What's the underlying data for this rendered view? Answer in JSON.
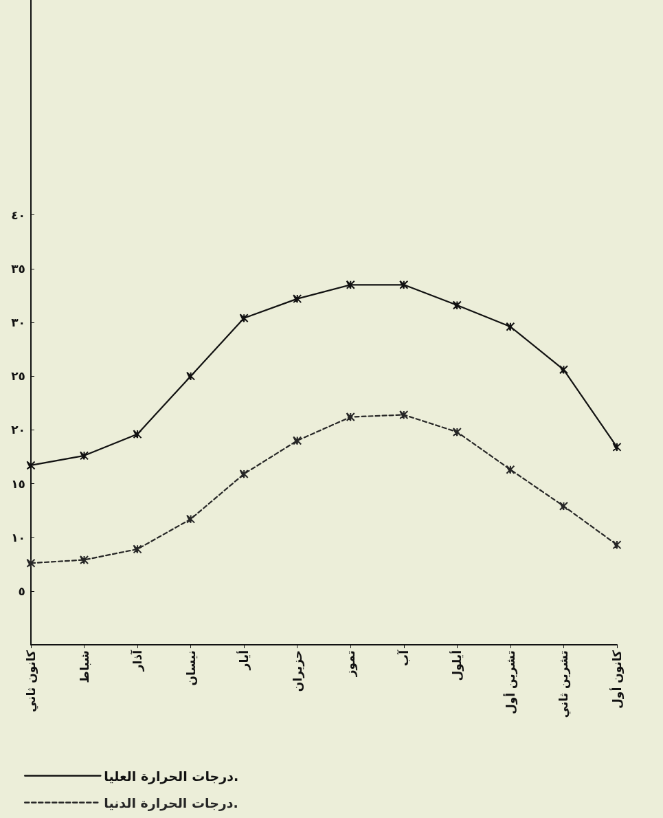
{
  "chart_data": {
    "type": "line",
    "categories": [
      "كانون ثاني",
      "شباط",
      "آذار",
      "نيسان",
      "أيار",
      "حزيران",
      "تموز",
      "آب",
      "أيلول",
      "تشرين أول",
      "تشرين ثاني",
      "كانون أول"
    ],
    "series": [
      {
        "name": "درجات الحرارة العليا.",
        "color": "#111111",
        "line_style": "solid",
        "values": [
          16.7,
          17.6,
          19.6,
          25.0,
          30.4,
          32.2,
          33.5,
          33.5,
          31.6,
          29.6,
          25.6,
          18.4
        ]
      },
      {
        "name": "درجات الحرارة الدنيا.",
        "color": "#262626",
        "line_style": "dashed",
        "values": [
          7.6,
          7.9,
          8.9,
          11.7,
          15.9,
          19.0,
          21.2,
          21.4,
          19.8,
          16.3,
          12.9,
          9.3
        ]
      }
    ],
    "ylim": [
      0,
      60
    ],
    "yticks": [
      {
        "value": 5,
        "label": "٥"
      },
      {
        "value": 10,
        "label": "١٠"
      },
      {
        "value": 15,
        "label": "١٥"
      },
      {
        "value": 20,
        "label": "٢٠"
      },
      {
        "value": 25,
        "label": "٢٥"
      },
      {
        "value": 30,
        "label": "٣٠"
      },
      {
        "value": 35,
        "label": "٣٥"
      },
      {
        "value": 40,
        "label": "٤٠"
      }
    ],
    "marker": "cross",
    "grid": false,
    "legend": "bottom left"
  }
}
